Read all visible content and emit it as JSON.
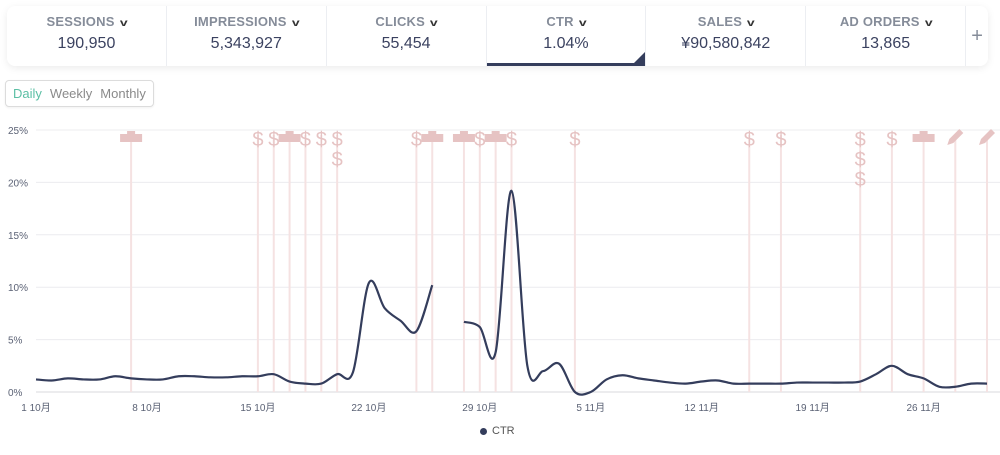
{
  "metrics": [
    {
      "label": "SESSIONS",
      "value": "190,950"
    },
    {
      "label": "IMPRESSIONS",
      "value": "5,343,927"
    },
    {
      "label": "CLICKS",
      "value": "55,454"
    },
    {
      "label": "CTR",
      "value": "1.04%",
      "active": true
    },
    {
      "label": "SALES",
      "value": "¥90,580,842"
    },
    {
      "label": "AD ORDERS",
      "value": "13,865"
    }
  ],
  "add_metric_label": "+",
  "granularity": {
    "options": [
      "Daily",
      "Weekly",
      "Monthly"
    ],
    "selected": "Daily"
  },
  "colors": {
    "line": "#343d5c",
    "marker": "#e6c3c3",
    "marker_line": "#f5e2e2",
    "active": "#5bbfa4"
  },
  "chart_data": {
    "type": "line",
    "series": [
      {
        "name": "CTR",
        "values": [
          1.2,
          1.1,
          1.3,
          1.2,
          1.2,
          1.5,
          1.3,
          1.2,
          1.2,
          1.5,
          1.5,
          1.4,
          1.4,
          1.5,
          1.5,
          1.7,
          1.0,
          0.8,
          0.8,
          1.7,
          1.9,
          10.4,
          8.0,
          6.8,
          5.8,
          10.2,
          null,
          6.7,
          6.2,
          3.8,
          19.2,
          2.5,
          2.0,
          2.7,
          0,
          0,
          1.2,
          1.6,
          1.3,
          1.1,
          0.9,
          0.8,
          1.0,
          1.1,
          0.8,
          0.8,
          0.8,
          0.8,
          0.9,
          0.9,
          0.9,
          0.9,
          1.0,
          1.7,
          2.5,
          1.7,
          1.3,
          0.5,
          0.5,
          0.8,
          0.8
        ]
      }
    ],
    "x_start": "1 Oct",
    "days": 61,
    "x_ticks": [
      {
        "day": 0,
        "label": "1 10月"
      },
      {
        "day": 7,
        "label": "8 10月"
      },
      {
        "day": 14,
        "label": "15 10月"
      },
      {
        "day": 21,
        "label": "22 10月"
      },
      {
        "day": 28,
        "label": "29 10月"
      },
      {
        "day": 35,
        "label": "5 11月"
      },
      {
        "day": 42,
        "label": "12 11月"
      },
      {
        "day": 49,
        "label": "19 11月"
      },
      {
        "day": 56,
        "label": "26 11月"
      }
    ],
    "y_ticks": [
      "0%",
      "5%",
      "10%",
      "15%",
      "20%",
      "25%"
    ],
    "ylim": [
      0,
      25
    ],
    "legend": "CTR",
    "legend_position": "bottom",
    "events": [
      {
        "day": 6,
        "type": "ranking"
      },
      {
        "day": 14,
        "type": "sale"
      },
      {
        "day": 15,
        "type": "sale"
      },
      {
        "day": 16,
        "type": "ranking"
      },
      {
        "day": 17,
        "type": "sale"
      },
      {
        "day": 18,
        "type": "sale"
      },
      {
        "day": 19,
        "type": "sale",
        "count": 2
      },
      {
        "day": 24,
        "type": "sale"
      },
      {
        "day": 25,
        "type": "ranking"
      },
      {
        "day": 27,
        "type": "ranking"
      },
      {
        "day": 28,
        "type": "sale"
      },
      {
        "day": 29,
        "type": "ranking"
      },
      {
        "day": 30,
        "type": "sale"
      },
      {
        "day": 34,
        "type": "sale"
      },
      {
        "day": 45,
        "type": "sale"
      },
      {
        "day": 47,
        "type": "sale"
      },
      {
        "day": 52,
        "type": "sale",
        "count": 3
      },
      {
        "day": 54,
        "type": "sale"
      },
      {
        "day": 56,
        "type": "ranking"
      },
      {
        "day": 58,
        "type": "edit"
      },
      {
        "day": 60,
        "type": "edit"
      }
    ]
  }
}
